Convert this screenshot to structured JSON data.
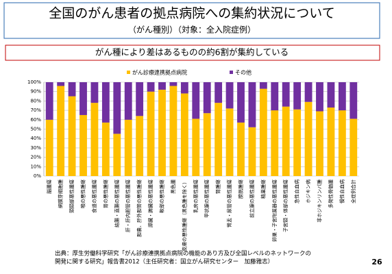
{
  "header": {
    "title": "全国のがん患者の拠点病院への集約状況について",
    "subtitle": "（がん種別）（対象：全入院症例）",
    "banner": "がん種により差はあるものの約6割が集約している"
  },
  "chart_data": {
    "type": "stacked_bar",
    "categories": [
      "脳腫瘍",
      "網膜芽細胞腫",
      "頭頸部悪性腫瘍",
      "喉の悪性腫瘍",
      "食道の悪性腫瘍",
      "胃の悪性腫瘍",
      "結腸・直腸の悪性腫瘍",
      "肝・肝内胆管の悪性腫瘍",
      "胆嚢、肝外胆管の悪性腫瘍",
      "膵臓・脾臓の悪性腫瘍",
      "軟部の悪性腫瘍",
      "黒色腫",
      "皮膚の悪性腫瘍（黒色腫を除く）",
      "乳房の悪性腫瘍",
      "甲状腺の悪性腫瘍",
      "腎腫瘍",
      "腎盂・尿管の悪性腫瘍",
      "膀胱腫瘍",
      "前立腺の悪性腫瘍",
      "精巣腫瘍",
      "卵巣・子宮附属器の悪性腫瘍",
      "子宮頸・体部の悪性腫瘍",
      "急性白血病",
      "ホジキン病",
      "非ホジキンリンパ腫",
      "多発性骨髄腫",
      "慢性白血病",
      "全症例合計"
    ],
    "series": [
      {
        "name": "がん診療連携拠点病院",
        "color": "#FFC000",
        "values": [
          60,
          96,
          85,
          65,
          78,
          57,
          45,
          60,
          64,
          90,
          92,
          96,
          88,
          61,
          67,
          78,
          72,
          57,
          52,
          93,
          70,
          74,
          71,
          79,
          69,
          73,
          70,
          61
        ]
      },
      {
        "name": "その他",
        "color": "#7030A0",
        "values": [
          40,
          4,
          15,
          35,
          22,
          43,
          55,
          40,
          36,
          10,
          8,
          4,
          12,
          39,
          33,
          22,
          28,
          43,
          48,
          7,
          30,
          26,
          29,
          21,
          31,
          27,
          30,
          39
        ]
      }
    ],
    "ylim": [
      0,
      100
    ],
    "yticks": [
      {
        "value": 0,
        "label": "0%"
      },
      {
        "value": 10,
        "label": "10%"
      },
      {
        "value": 20,
        "label": "20%"
      },
      {
        "value": 30,
        "label": "30%"
      },
      {
        "value": 40,
        "label": "40%"
      },
      {
        "value": 50,
        "label": "50%"
      },
      {
        "value": 60,
        "label": "60%"
      },
      {
        "value": 70,
        "label": "70%"
      },
      {
        "value": 80,
        "label": "80%"
      },
      {
        "value": 90,
        "label": "90%"
      },
      {
        "value": 100,
        "label": "100%"
      }
    ],
    "grid": true
  },
  "footer": {
    "source_line1": "出典：厚生労働科学研究「がん診療連携拠点病院の機能のあり方及び全国レベルのネットワークの",
    "source_line2": "開発に関する研究」報告書2012（主任研究者：国立がん研究センター　加藤雅志）",
    "page": "26"
  }
}
